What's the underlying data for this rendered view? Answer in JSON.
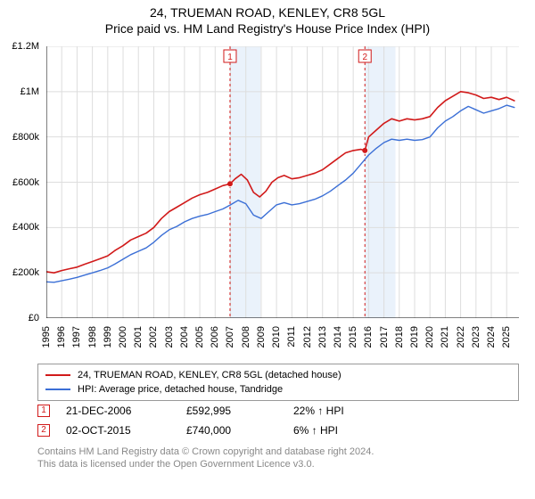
{
  "title": {
    "line1": "24, TRUEMAN ROAD, KENLEY, CR8 5GL",
    "line2": "Price paid vs. HM Land Registry's House Price Index (HPI)",
    "fontsize": 14,
    "color": "#000000"
  },
  "chart": {
    "type": "line",
    "background_color": "#ffffff",
    "plot_border_color": "#000000",
    "grid_color": "#dddddd",
    "highlight_band_color": "#eaf2fb",
    "xlim": [
      1995,
      2025.8
    ],
    "ylim": [
      0,
      1200000
    ],
    "ytick_step": 200000,
    "ytick_labels": [
      "£0",
      "£200k",
      "£400k",
      "£600k",
      "£800k",
      "£1M",
      "£1.2M"
    ],
    "xtick_years": [
      1995,
      1996,
      1997,
      1998,
      1999,
      2000,
      2001,
      2002,
      2003,
      2004,
      2005,
      2006,
      2007,
      2008,
      2009,
      2010,
      2011,
      2012,
      2013,
      2014,
      2015,
      2016,
      2017,
      2018,
      2019,
      2020,
      2021,
      2022,
      2023,
      2024,
      2025
    ],
    "tick_fontsize": 11,
    "highlight_bands": [
      {
        "start": 2006.95,
        "end": 2008.95
      },
      {
        "start": 2015.75,
        "end": 2017.75
      }
    ],
    "series": [
      {
        "name": "price_paid",
        "label": "24, TRUEMAN ROAD, KENLEY, CR8 5GL (detached house)",
        "color": "#d11a1a",
        "line_width": 1.6,
        "data": [
          [
            1995.0,
            205000
          ],
          [
            1995.5,
            200000
          ],
          [
            1996.0,
            210000
          ],
          [
            1996.5,
            218000
          ],
          [
            1997.0,
            225000
          ],
          [
            1997.5,
            238000
          ],
          [
            1998.0,
            250000
          ],
          [
            1998.5,
            262000
          ],
          [
            1999.0,
            275000
          ],
          [
            1999.5,
            300000
          ],
          [
            2000.0,
            320000
          ],
          [
            2000.5,
            345000
          ],
          [
            2001.0,
            360000
          ],
          [
            2001.5,
            375000
          ],
          [
            2002.0,
            400000
          ],
          [
            2002.5,
            440000
          ],
          [
            2003.0,
            470000
          ],
          [
            2003.5,
            490000
          ],
          [
            2004.0,
            510000
          ],
          [
            2004.5,
            530000
          ],
          [
            2005.0,
            545000
          ],
          [
            2005.5,
            555000
          ],
          [
            2006.0,
            570000
          ],
          [
            2006.5,
            585000
          ],
          [
            2006.97,
            592995
          ],
          [
            2007.3,
            615000
          ],
          [
            2007.7,
            635000
          ],
          [
            2008.1,
            610000
          ],
          [
            2008.5,
            555000
          ],
          [
            2008.9,
            535000
          ],
          [
            2009.3,
            560000
          ],
          [
            2009.7,
            600000
          ],
          [
            2010.1,
            620000
          ],
          [
            2010.5,
            630000
          ],
          [
            2011.0,
            615000
          ],
          [
            2011.5,
            620000
          ],
          [
            2012.0,
            630000
          ],
          [
            2012.5,
            640000
          ],
          [
            2013.0,
            655000
          ],
          [
            2013.5,
            680000
          ],
          [
            2014.0,
            705000
          ],
          [
            2014.5,
            730000
          ],
          [
            2015.0,
            740000
          ],
          [
            2015.5,
            745000
          ],
          [
            2015.76,
            740000
          ],
          [
            2016.0,
            800000
          ],
          [
            2016.5,
            830000
          ],
          [
            2017.0,
            860000
          ],
          [
            2017.5,
            880000
          ],
          [
            2018.0,
            870000
          ],
          [
            2018.5,
            880000
          ],
          [
            2019.0,
            875000
          ],
          [
            2019.5,
            880000
          ],
          [
            2020.0,
            890000
          ],
          [
            2020.5,
            930000
          ],
          [
            2021.0,
            960000
          ],
          [
            2021.5,
            980000
          ],
          [
            2022.0,
            1000000
          ],
          [
            2022.5,
            995000
          ],
          [
            2023.0,
            985000
          ],
          [
            2023.5,
            970000
          ],
          [
            2024.0,
            975000
          ],
          [
            2024.5,
            965000
          ],
          [
            2025.0,
            975000
          ],
          [
            2025.5,
            960000
          ]
        ]
      },
      {
        "name": "hpi",
        "label": "HPI: Average price, detached house, Tandridge",
        "color": "#3b6fd6",
        "line_width": 1.4,
        "data": [
          [
            1995.0,
            160000
          ],
          [
            1995.5,
            158000
          ],
          [
            1996.0,
            165000
          ],
          [
            1996.5,
            172000
          ],
          [
            1997.0,
            180000
          ],
          [
            1997.5,
            190000
          ],
          [
            1998.0,
            200000
          ],
          [
            1998.5,
            210000
          ],
          [
            1999.0,
            222000
          ],
          [
            1999.5,
            240000
          ],
          [
            2000.0,
            260000
          ],
          [
            2000.5,
            280000
          ],
          [
            2001.0,
            295000
          ],
          [
            2001.5,
            310000
          ],
          [
            2002.0,
            335000
          ],
          [
            2002.5,
            365000
          ],
          [
            2003.0,
            390000
          ],
          [
            2003.5,
            405000
          ],
          [
            2004.0,
            425000
          ],
          [
            2004.5,
            440000
          ],
          [
            2005.0,
            450000
          ],
          [
            2005.5,
            458000
          ],
          [
            2006.0,
            470000
          ],
          [
            2006.5,
            482000
          ],
          [
            2007.0,
            500000
          ],
          [
            2007.5,
            520000
          ],
          [
            2008.0,
            505000
          ],
          [
            2008.5,
            455000
          ],
          [
            2009.0,
            440000
          ],
          [
            2009.5,
            470000
          ],
          [
            2010.0,
            500000
          ],
          [
            2010.5,
            510000
          ],
          [
            2011.0,
            500000
          ],
          [
            2011.5,
            505000
          ],
          [
            2012.0,
            515000
          ],
          [
            2012.5,
            525000
          ],
          [
            2013.0,
            540000
          ],
          [
            2013.5,
            560000
          ],
          [
            2014.0,
            585000
          ],
          [
            2014.5,
            610000
          ],
          [
            2015.0,
            640000
          ],
          [
            2015.5,
            680000
          ],
          [
            2016.0,
            720000
          ],
          [
            2016.5,
            750000
          ],
          [
            2017.0,
            775000
          ],
          [
            2017.5,
            790000
          ],
          [
            2018.0,
            785000
          ],
          [
            2018.5,
            790000
          ],
          [
            2019.0,
            785000
          ],
          [
            2019.5,
            788000
          ],
          [
            2020.0,
            800000
          ],
          [
            2020.5,
            840000
          ],
          [
            2021.0,
            870000
          ],
          [
            2021.5,
            890000
          ],
          [
            2022.0,
            915000
          ],
          [
            2022.5,
            935000
          ],
          [
            2023.0,
            920000
          ],
          [
            2023.5,
            905000
          ],
          [
            2024.0,
            915000
          ],
          [
            2024.5,
            925000
          ],
          [
            2025.0,
            940000
          ],
          [
            2025.5,
            930000
          ]
        ]
      }
    ],
    "markers": [
      {
        "n": "1",
        "year": 2006.97,
        "line_color": "#d11a1a",
        "border_color": "#d11a1a",
        "badge_bg": "#ffffff",
        "date": "21-DEC-2006",
        "price": "£592,995",
        "diff_pct": "22%",
        "diff_dir": "↑",
        "diff_label": "HPI",
        "dot_y": 592995,
        "dot_color": "#d11a1a"
      },
      {
        "n": "2",
        "year": 2015.76,
        "line_color": "#d11a1a",
        "border_color": "#d11a1a",
        "badge_bg": "#ffffff",
        "date": "02-OCT-2015",
        "price": "£740,000",
        "diff_pct": "6%",
        "diff_dir": "↑",
        "diff_label": "HPI",
        "dot_y": 740000,
        "dot_color": "#d11a1a"
      }
    ]
  },
  "legend": {
    "border_color": "#999999",
    "fontsize": 11
  },
  "footer": {
    "line1": "Contains HM Land Registry data © Crown copyright and database right 2024.",
    "line2": "This data is licensed under the Open Government Licence v3.0.",
    "color": "#888888",
    "fontsize": 11
  }
}
